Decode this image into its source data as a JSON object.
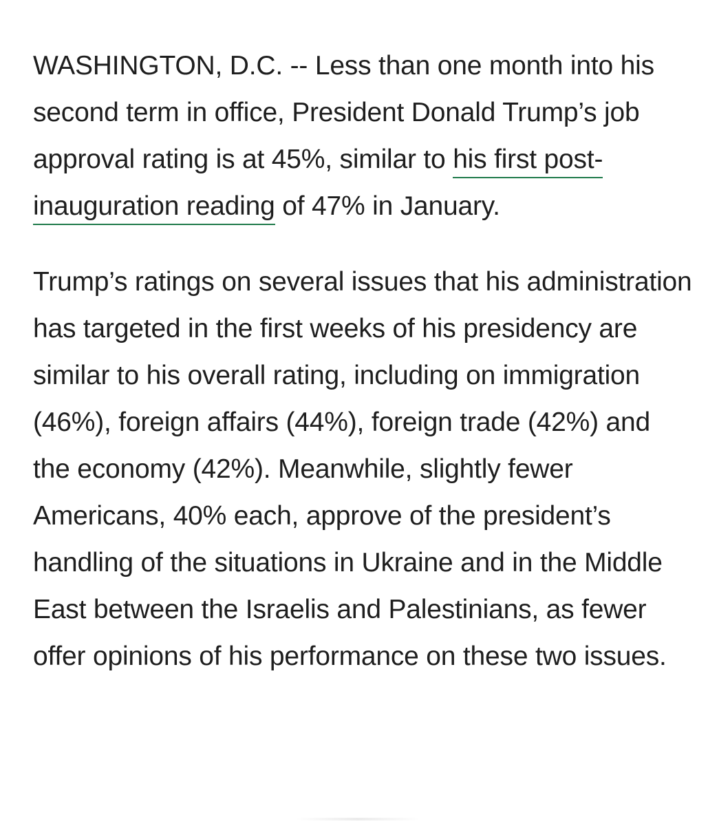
{
  "article": {
    "paragraph1": {
      "before_link": "WASHINGTON, D.C. -- Less than one month into his second term in office, President Donald Trump’s job approval rating is at 45%, similar to ",
      "link_text": "his first post-inauguration reading",
      "after_link": " of 47% in January.",
      "link_color": "#1f7a4a"
    },
    "paragraph2": "Trump’s ratings on several issues that his administration has targeted in the first weeks of his presidency are similar to his overall rating, including on immigration (46%), foreign affairs (44%), foreign trade (42%) and the economy (42%). Meanwhile, slightly fewer Americans, 40% each, approve of the president’s handling of the situations in Ukraine and in the Middle East between the Israelis and Palestinians, as fewer offer opinions of his performance on these two issues."
  }
}
